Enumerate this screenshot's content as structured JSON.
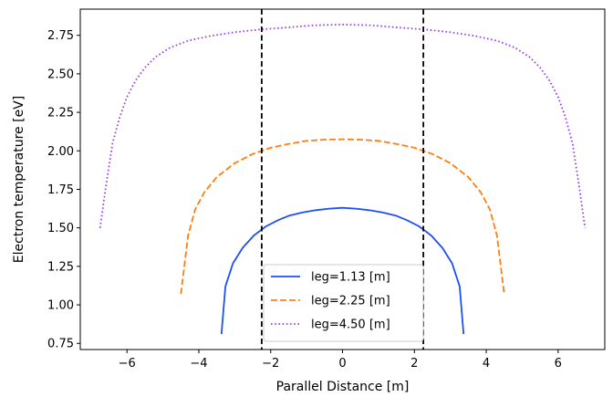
{
  "chart_data": {
    "type": "line",
    "title": "",
    "xlabel": "Parallel Distance [m]",
    "ylabel": "Electron temperature [eV]",
    "xlim": [
      -7.3,
      7.3
    ],
    "ylim": [
      0.71,
      2.92
    ],
    "xticks": [
      -6,
      -4,
      -2,
      0,
      2,
      4,
      6
    ],
    "xtick_labels": [
      "−6",
      "−4",
      "−2",
      "0",
      "2",
      "4",
      "6"
    ],
    "yticks": [
      0.75,
      1.0,
      1.25,
      1.5,
      1.75,
      2.0,
      2.25,
      2.5,
      2.75
    ],
    "ytick_labels": [
      "0.75",
      "1.00",
      "1.25",
      "1.50",
      "1.75",
      "2.00",
      "2.25",
      "2.50",
      "2.75"
    ],
    "grid": false,
    "legend_position": "bottom-center",
    "vlines": [
      -2.25,
      2.25
    ],
    "series": [
      {
        "name": "leg=1.13 [m]",
        "color": "#1f4ff0",
        "style": "solid",
        "x": [
          -3.37,
          -3.26,
          -3.05,
          -2.78,
          -2.47,
          -2.13,
          -1.79,
          -1.48,
          -1.11,
          -0.74,
          -0.37,
          0.0,
          0.37,
          0.74,
          1.11,
          1.48,
          1.79,
          2.13,
          2.47,
          2.78,
          3.05,
          3.26,
          3.37
        ],
        "y": [
          0.81,
          1.12,
          1.27,
          1.37,
          1.45,
          1.51,
          1.55,
          1.58,
          1.6,
          1.615,
          1.625,
          1.63,
          1.625,
          1.615,
          1.6,
          1.58,
          1.55,
          1.51,
          1.45,
          1.37,
          1.27,
          1.12,
          0.81
        ]
      },
      {
        "name": "leg=2.25 [m]",
        "color": "#ff7f0e",
        "style": "dashed",
        "x": [
          -4.5,
          -4.3,
          -4.1,
          -3.85,
          -3.5,
          -3.0,
          -2.5,
          -2.0,
          -1.5,
          -1.0,
          -0.5,
          0.0,
          0.5,
          1.0,
          1.5,
          2.0,
          2.5,
          3.0,
          3.5,
          3.85,
          4.1,
          4.3,
          4.5
        ],
        "y": [
          1.07,
          1.45,
          1.62,
          1.73,
          1.83,
          1.92,
          1.98,
          2.02,
          2.045,
          2.065,
          2.073,
          2.075,
          2.073,
          2.065,
          2.045,
          2.02,
          1.98,
          1.92,
          1.83,
          1.73,
          1.62,
          1.45,
          1.07
        ]
      },
      {
        "name": "leg=4.50 [m]",
        "color": "#9b3cf0",
        "style": "dotted",
        "x": [
          -6.75,
          -6.6,
          -6.4,
          -6.2,
          -6.0,
          -5.75,
          -5.5,
          -5.2,
          -4.8,
          -4.3,
          -3.7,
          -3.0,
          -2.3,
          -1.6,
          -0.8,
          0.0,
          0.8,
          1.6,
          2.3,
          3.0,
          3.7,
          4.3,
          4.8,
          5.2,
          5.5,
          5.75,
          6.0,
          6.2,
          6.4,
          6.6,
          6.75
        ],
        "y": [
          1.5,
          1.75,
          2.05,
          2.22,
          2.35,
          2.46,
          2.54,
          2.61,
          2.67,
          2.715,
          2.745,
          2.77,
          2.788,
          2.8,
          2.815,
          2.82,
          2.815,
          2.8,
          2.788,
          2.77,
          2.745,
          2.715,
          2.67,
          2.61,
          2.54,
          2.46,
          2.35,
          2.22,
          2.05,
          1.75,
          1.5
        ]
      }
    ]
  }
}
